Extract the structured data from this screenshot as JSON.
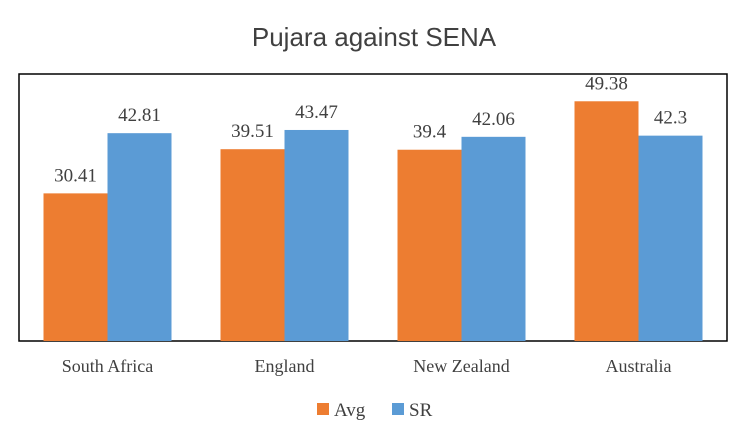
{
  "chart_data": {
    "type": "bar",
    "title": "Pujara against SENA",
    "categories": [
      "South Africa",
      "England",
      "New Zealand",
      "Australia"
    ],
    "series": [
      {
        "name": "Avg",
        "values": [
          30.41,
          39.51,
          39.4,
          49.38
        ],
        "color": "#ED7D31"
      },
      {
        "name": "SR",
        "values": [
          42.81,
          43.47,
          42.06,
          42.3
        ],
        "color": "#5B9BD5"
      }
    ],
    "data_labels": [
      [
        "30.41",
        "39.51",
        "39.4",
        "49.38"
      ],
      [
        "42.81",
        "43.47",
        "42.06",
        "42.3"
      ]
    ],
    "ylim": [
      0,
      55
    ],
    "grid": false,
    "legend_position": "bottom"
  }
}
